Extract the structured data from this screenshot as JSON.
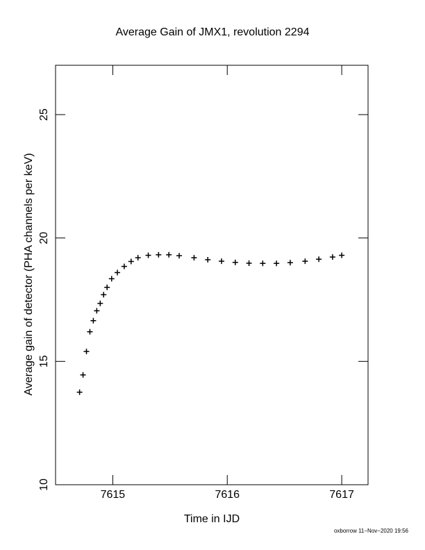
{
  "chart_data": {
    "type": "scatter",
    "title": "Average Gain of JMX1, revolution 2294",
    "x_label": "Time in IJD",
    "y_label": "Average gain of detector (PHA channels per keV)",
    "footer": "oxborrow 11−Nov−2020 19:56",
    "marker": "plus",
    "color": "#000000",
    "xlim": [
      7614.5,
      7617.23
    ],
    "ylim": [
      10,
      27
    ],
    "xticks": [
      7615,
      7616,
      7617
    ],
    "yticks": [
      10,
      15,
      20,
      25
    ],
    "x": [
      7614.71,
      7614.74,
      7614.77,
      7614.8,
      7614.83,
      7614.86,
      7614.89,
      7614.92,
      7614.95,
      7614.99,
      7615.04,
      7615.1,
      7615.16,
      7615.22,
      7615.31,
      7615.4,
      7615.49,
      7615.58,
      7615.71,
      7615.83,
      7615.95,
      7616.07,
      7616.19,
      7616.31,
      7616.43,
      7616.55,
      7616.68,
      7616.8,
      7616.92,
      7617.0
    ],
    "values": [
      13.75,
      14.45,
      15.4,
      16.2,
      16.65,
      17.05,
      17.35,
      17.7,
      18.0,
      18.35,
      18.6,
      18.85,
      19.05,
      19.2,
      19.3,
      19.32,
      19.32,
      19.28,
      19.2,
      19.12,
      19.06,
      19.01,
      18.98,
      18.97,
      18.97,
      19.0,
      19.06,
      19.14,
      19.23,
      19.3
    ]
  }
}
